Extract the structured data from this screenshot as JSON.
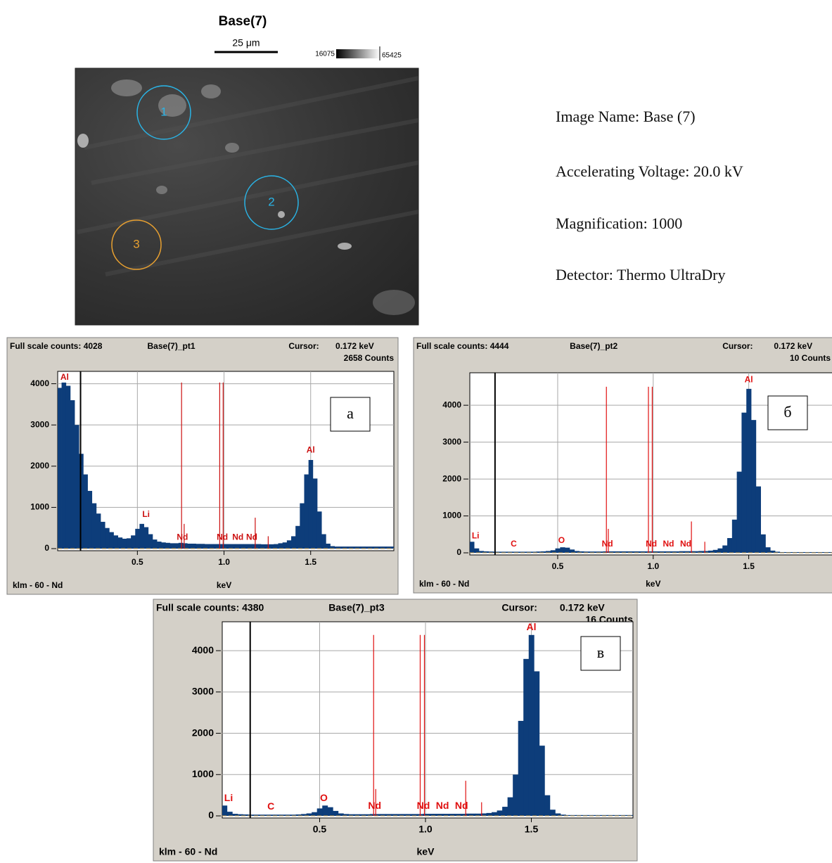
{
  "image": {
    "title": "Base(7)",
    "scale_label": "25 μm",
    "range_min": 16075,
    "range_max": 65425,
    "regions": [
      {
        "label": "1"
      },
      {
        "label": "2"
      },
      {
        "label": "3"
      }
    ]
  },
  "info": [
    "Image Name: Base (7)",
    "Accelerating Voltage: 20.0 kV",
    "Magnification: 1000",
    "Detector: Thermo UltraDry"
  ],
  "chart_data": [
    {
      "type": "bar",
      "header": "Full scale counts: 4028",
      "title": "Base(7)_pt1",
      "cursor_label": "Cursor:",
      "cursor_energy": "0.172 keV",
      "cursor_counts": "2658 Counts",
      "cursor_x": 0.172,
      "panel_label": "а",
      "footer": "klm - 60 - Nd",
      "xlabel": "keV",
      "color": "#0d3d7a",
      "line_color": "#cc1010",
      "grid": true,
      "xlim": [
        0.04,
        1.98
      ],
      "ylim": [
        0,
        4300
      ],
      "xticks": [
        0.5,
        {
          "value": 1,
          "label": "1.0"
        },
        1.5
      ],
      "yticks": [
        0,
        1000,
        2000,
        3000,
        4000
      ],
      "x": [
        0.05,
        0.075,
        0.1,
        0.125,
        0.15,
        0.175,
        0.2,
        0.225,
        0.25,
        0.275,
        0.3,
        0.325,
        0.35,
        0.375,
        0.4,
        0.425,
        0.45,
        0.475,
        0.5,
        0.525,
        0.55,
        0.575,
        0.6,
        0.625,
        0.65,
        0.675,
        0.7,
        0.725,
        0.75,
        0.775,
        0.8,
        0.825,
        0.85,
        0.875,
        0.9,
        0.925,
        0.95,
        0.975,
        1,
        1.025,
        1.05,
        1.075,
        1.1,
        1.125,
        1.15,
        1.175,
        1.2,
        1.225,
        1.25,
        1.275,
        1.3,
        1.325,
        1.35,
        1.375,
        1.4,
        1.425,
        1.45,
        1.475,
        1.5,
        1.525,
        1.55,
        1.575,
        1.6,
        1.625,
        1.65,
        1.675,
        1.7,
        1.725,
        1.75,
        1.775,
        1.8,
        1.825,
        1.85,
        1.875,
        1.9,
        1.925,
        1.95,
        1.975
      ],
      "values": [
        3900,
        4028,
        3950,
        3600,
        3000,
        2300,
        1800,
        1400,
        1100,
        850,
        650,
        500,
        400,
        320,
        270,
        240,
        250,
        320,
        480,
        600,
        520,
        350,
        220,
        170,
        150,
        140,
        130,
        130,
        140,
        130,
        120,
        120,
        115,
        115,
        110,
        110,
        110,
        110,
        110,
        110,
        110,
        110,
        110,
        110,
        110,
        110,
        110,
        105,
        105,
        105,
        110,
        130,
        150,
        200,
        300,
        550,
        1100,
        1800,
        2150,
        1700,
        900,
        350,
        120,
        60,
        50,
        50,
        50,
        50,
        50,
        50,
        50,
        50,
        50,
        50,
        50,
        50,
        50,
        50
      ],
      "lines": [
        {
          "x": 0.755,
          "top": 4030
        },
        {
          "x": 0.975,
          "top": 4030
        },
        {
          "x": 0.995,
          "top": 4030
        },
        {
          "x": 0.77,
          "top": 600
        },
        {
          "x": 1.18,
          "top": 750
        },
        {
          "x": 1.255,
          "top": 300
        }
      ],
      "labels": [
        {
          "text": "Al",
          "x": 0.08,
          "y": 4150
        },
        {
          "text": "Li",
          "x": 0.55,
          "y": 820
        },
        {
          "text": "Nd",
          "x": 0.76,
          "y": 270
        },
        {
          "text": "Nd",
          "x": 0.99,
          "y": 270
        },
        {
          "text": "Nd",
          "x": 1.08,
          "y": 270
        },
        {
          "text": "Nd",
          "x": 1.16,
          "y": 270
        },
        {
          "text": "Al",
          "x": 1.5,
          "y": 2380
        }
      ]
    },
    {
      "type": "bar",
      "header": "Full scale counts: 4444",
      "title": "Base(7)_pt2",
      "cursor_label": "Cursor:",
      "cursor_energy": "0.172 keV",
      "cursor_counts": "10 Counts",
      "cursor_x": 0.172,
      "panel_label": "б",
      "footer": "klm - 60 - Nd",
      "xlabel": "keV",
      "color": "#0d3d7a",
      "line_color": "#e01010",
      "grid": true,
      "xlim": [
        0.04,
        1.98
      ],
      "ylim": [
        0,
        4880
      ],
      "xticks": [
        0.5,
        {
          "value": 1,
          "label": "1.0"
        },
        1.5
      ],
      "yticks": [
        0,
        1000,
        2000,
        3000,
        4000
      ],
      "x": [
        0.05,
        0.075,
        0.1,
        0.125,
        0.15,
        0.175,
        0.2,
        0.225,
        0.25,
        0.275,
        0.3,
        0.325,
        0.35,
        0.375,
        0.4,
        0.425,
        0.45,
        0.475,
        0.5,
        0.525,
        0.55,
        0.575,
        0.6,
        0.625,
        0.65,
        0.675,
        0.7,
        0.725,
        0.75,
        0.775,
        0.8,
        0.825,
        0.85,
        0.875,
        0.9,
        0.925,
        0.95,
        0.975,
        1,
        1.025,
        1.05,
        1.075,
        1.1,
        1.125,
        1.15,
        1.175,
        1.2,
        1.225,
        1.25,
        1.275,
        1.3,
        1.325,
        1.35,
        1.375,
        1.4,
        1.425,
        1.45,
        1.475,
        1.5,
        1.525,
        1.55,
        1.575,
        1.6,
        1.625,
        1.65,
        1.675,
        1.7,
        1.725,
        1.75,
        1.775,
        1.8,
        1.825,
        1.85,
        1.875,
        1.9,
        1.925,
        1.95,
        1.975
      ],
      "values": [
        300,
        120,
        50,
        40,
        35,
        30,
        30,
        30,
        30,
        30,
        30,
        30,
        30,
        30,
        35,
        40,
        50,
        70,
        120,
        150,
        140,
        90,
        50,
        40,
        35,
        35,
        35,
        35,
        40,
        40,
        40,
        40,
        40,
        40,
        40,
        40,
        40,
        40,
        40,
        40,
        40,
        40,
        40,
        40,
        45,
        45,
        45,
        45,
        50,
        50,
        60,
        80,
        120,
        200,
        400,
        900,
        2200,
        3800,
        4444,
        3600,
        1800,
        500,
        150,
        60,
        30,
        20,
        20,
        20,
        20,
        20,
        20,
        20,
        20,
        20,
        20,
        20,
        20,
        20
      ],
      "lines": [
        {
          "x": 0.755,
          "top": 4500
        },
        {
          "x": 0.975,
          "top": 4500
        },
        {
          "x": 0.995,
          "top": 4500
        },
        {
          "x": 0.765,
          "top": 650
        },
        {
          "x": 1.2,
          "top": 850
        },
        {
          "x": 1.27,
          "top": 300
        }
      ],
      "labels": [
        {
          "text": "Li",
          "x": 0.07,
          "y": 450
        },
        {
          "text": "C",
          "x": 0.27,
          "y": 230
        },
        {
          "text": "O",
          "x": 0.52,
          "y": 330
        },
        {
          "text": "Nd",
          "x": 0.76,
          "y": 230
        },
        {
          "text": "Nd",
          "x": 0.99,
          "y": 230
        },
        {
          "text": "Nd",
          "x": 1.08,
          "y": 230
        },
        {
          "text": "Nd",
          "x": 1.17,
          "y": 230
        },
        {
          "text": "Al",
          "x": 1.5,
          "y": 4680
        }
      ]
    },
    {
      "type": "bar",
      "header": "Full scale counts: 4380",
      "title": "Base(7)_pt3",
      "cursor_label": "Cursor:",
      "cursor_energy": "0.172 keV",
      "cursor_counts": "16 Counts",
      "cursor_x": 0.172,
      "panel_label": "в",
      "footer": "klm - 60 - Nd",
      "xlabel": "keV",
      "color": "#0d3d7a",
      "line_color": "#e01010",
      "grid": true,
      "xlim": [
        0.04,
        1.98
      ],
      "ylim": [
        0,
        4700
      ],
      "xticks": [
        0.5,
        {
          "value": 1,
          "label": "1.0"
        },
        1.5
      ],
      "yticks": [
        0,
        1000,
        2000,
        3000,
        4000
      ],
      "x": [
        0.05,
        0.075,
        0.1,
        0.125,
        0.15,
        0.175,
        0.2,
        0.225,
        0.25,
        0.275,
        0.3,
        0.325,
        0.35,
        0.375,
        0.4,
        0.425,
        0.45,
        0.475,
        0.5,
        0.525,
        0.55,
        0.575,
        0.6,
        0.625,
        0.65,
        0.675,
        0.7,
        0.725,
        0.75,
        0.775,
        0.8,
        0.825,
        0.85,
        0.875,
        0.9,
        0.925,
        0.95,
        0.975,
        1,
        1.025,
        1.05,
        1.075,
        1.1,
        1.125,
        1.15,
        1.175,
        1.2,
        1.225,
        1.25,
        1.275,
        1.3,
        1.325,
        1.35,
        1.375,
        1.4,
        1.425,
        1.45,
        1.475,
        1.5,
        1.525,
        1.55,
        1.575,
        1.6,
        1.625,
        1.65,
        1.675,
        1.7,
        1.725,
        1.75,
        1.775,
        1.8,
        1.825,
        1.85,
        1.875,
        1.9,
        1.925,
        1.95,
        1.975
      ],
      "values": [
        250,
        100,
        50,
        40,
        35,
        30,
        30,
        30,
        30,
        30,
        30,
        30,
        30,
        30,
        35,
        45,
        60,
        90,
        180,
        250,
        210,
        120,
        60,
        45,
        40,
        40,
        40,
        40,
        45,
        45,
        45,
        45,
        45,
        45,
        45,
        45,
        45,
        45,
        50,
        50,
        50,
        50,
        50,
        50,
        50,
        50,
        55,
        55,
        55,
        60,
        70,
        90,
        130,
        220,
        450,
        1000,
        2300,
        3800,
        4380,
        3500,
        1700,
        500,
        150,
        60,
        30,
        20,
        20,
        20,
        20,
        20,
        20,
        20,
        20,
        20,
        20,
        20,
        20,
        20
      ],
      "lines": [
        {
          "x": 0.755,
          "top": 4380
        },
        {
          "x": 0.975,
          "top": 4380
        },
        {
          "x": 0.995,
          "top": 4380
        },
        {
          "x": 0.765,
          "top": 650
        },
        {
          "x": 1.19,
          "top": 850
        },
        {
          "x": 1.265,
          "top": 330
        }
      ],
      "labels": [
        {
          "text": "Li",
          "x": 0.07,
          "y": 420
        },
        {
          "text": "C",
          "x": 0.27,
          "y": 220
        },
        {
          "text": "O",
          "x": 0.52,
          "y": 420
        },
        {
          "text": "Nd",
          "x": 0.76,
          "y": 230
        },
        {
          "text": "Nd",
          "x": 0.99,
          "y": 230
        },
        {
          "text": "Nd",
          "x": 1.08,
          "y": 230
        },
        {
          "text": "Nd",
          "x": 1.17,
          "y": 230
        },
        {
          "text": "Al",
          "x": 1.5,
          "y": 4560
        }
      ]
    }
  ]
}
